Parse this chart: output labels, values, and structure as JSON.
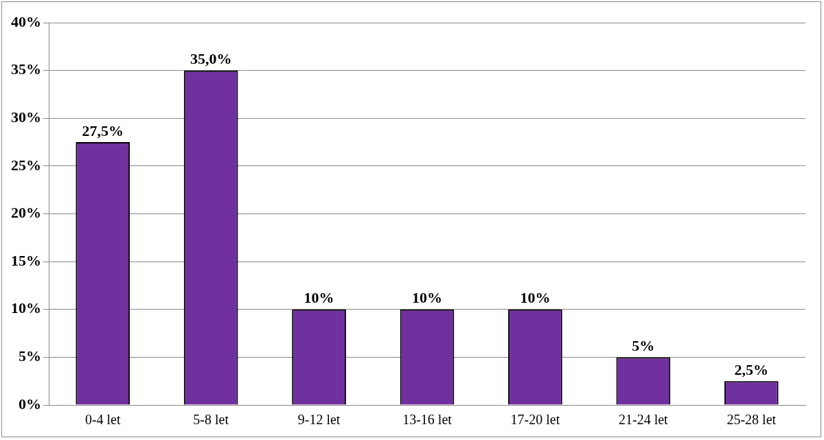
{
  "chart_data": {
    "type": "bar",
    "categories": [
      "0-4 let",
      "5-8 let",
      "9-12 let",
      "13-16 let",
      "17-20 let",
      "21-24 let",
      "25-28 let"
    ],
    "values": [
      27.5,
      35,
      10,
      10,
      10,
      5,
      2.5
    ],
    "value_labels": [
      "27,5%",
      "35,0%",
      "10%",
      "10%",
      "10%",
      "5%",
      "2,5%"
    ],
    "color": "#7030a0",
    "ylim": [
      0,
      40
    ],
    "yticks": [
      {
        "value": 0,
        "label": "0%"
      },
      {
        "value": 5,
        "label": "5%"
      },
      {
        "value": 10,
        "label": "10%"
      },
      {
        "value": 15,
        "label": "15%"
      },
      {
        "value": 20,
        "label": "20%"
      },
      {
        "value": 25,
        "label": "25%"
      },
      {
        "value": 30,
        "label": "30%"
      },
      {
        "value": 35,
        "label": "35%"
      },
      {
        "value": 40,
        "label": "40%"
      }
    ],
    "grid": "y",
    "legend": false
  }
}
